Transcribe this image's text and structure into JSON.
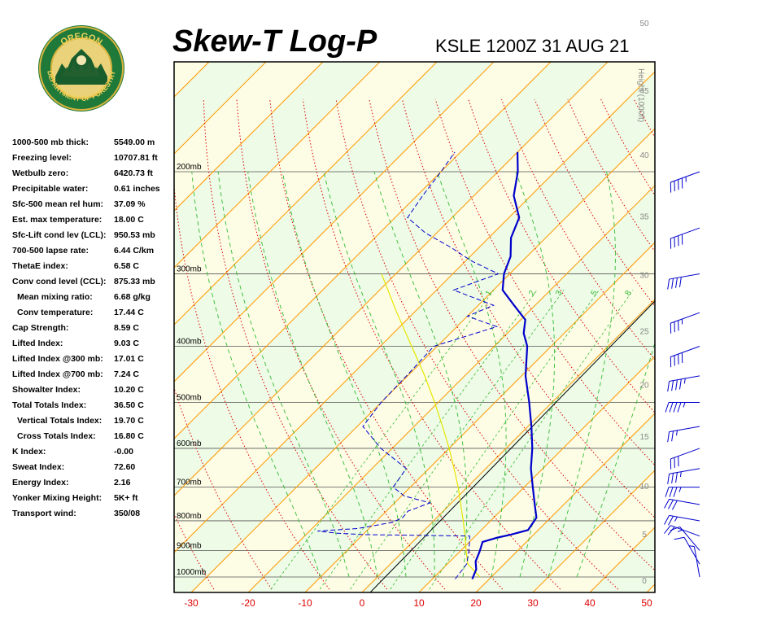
{
  "header": {
    "title": "Skew-T Log-P",
    "station_line": "KSLE 1200Z 31 AUG 21",
    "logo_text_top": "OREGON",
    "logo_text_bottom": "DEPARTMENT OF FORESTRY"
  },
  "indices": [
    {
      "label": "1000-500 mb thick:",
      "value": "5549.00 m",
      "indent": false
    },
    {
      "label": "Freezing level:",
      "value": "10707.81 ft",
      "indent": false
    },
    {
      "label": "Wetbulb zero:",
      "value": "6420.73 ft",
      "indent": false
    },
    {
      "label": "Precipitable water:",
      "value": "0.61 inches",
      "indent": false
    },
    {
      "label": "Sfc-500 mean rel hum:",
      "value": "37.09 %",
      "indent": false
    },
    {
      "label": "Est. max temperature:",
      "value": "18.00 C",
      "indent": false
    },
    {
      "label": "Sfc-Lift cond lev (LCL):",
      "value": "950.53 mb",
      "indent": false
    },
    {
      "label": "700-500 lapse rate:",
      "value": "6.44 C/km",
      "indent": false
    },
    {
      "label": "ThetaE index:",
      "value": "6.58 C",
      "indent": false
    },
    {
      "label": "Conv cond level (CCL):",
      "value": "875.33 mb",
      "indent": false
    },
    {
      "label": "Mean mixing ratio:",
      "value": "6.68 g/kg",
      "indent": true
    },
    {
      "label": "Conv temperature:",
      "value": "17.44 C",
      "indent": true
    },
    {
      "label": "Cap Strength:",
      "value": "8.59 C",
      "indent": false
    },
    {
      "label": "Lifted Index:",
      "value": "9.03 C",
      "indent": false
    },
    {
      "label": "Lifted Index @300 mb:",
      "value": "17.01 C",
      "indent": false
    },
    {
      "label": "Lifted Index @700 mb:",
      "value": "7.24 C",
      "indent": false
    },
    {
      "label": "Showalter Index:",
      "value": "10.20 C",
      "indent": false
    },
    {
      "label": "Total Totals Index:",
      "value": "36.50 C",
      "indent": false
    },
    {
      "label": "Vertical Totals Index:",
      "value": "19.70 C",
      "indent": true
    },
    {
      "label": "Cross Totals Index:",
      "value": "16.80 C",
      "indent": true
    },
    {
      "label": "K Index:",
      "value": "-0.00",
      "indent": false
    },
    {
      "label": "Sweat Index:",
      "value": "72.60",
      "indent": false
    },
    {
      "label": "Energy Index:",
      "value": "2.16",
      "indent": false
    },
    {
      "label": "Yonker Mixing Height:",
      "value": "5K+ ft",
      "indent": false
    },
    {
      "label": "Transport wind:",
      "value": "350/08",
      "indent": false
    }
  ],
  "colors": {
    "temperature": "#0000cc",
    "dewpoint": "#0000cc",
    "parcel": "#e6e600",
    "isotherm": "#ff9900",
    "dry_adiabat": "#dd0000",
    "moist_adiabat": "#33bb33",
    "mixing_ratio": "#33bb33",
    "band_light_green": "#eefbe6",
    "band_light_yellow": "#fdfde6"
  },
  "chart_data": {
    "type": "skew-t",
    "title": "Skew-T Log-P",
    "subtitle": "KSLE 1200Z 31 AUG 21",
    "x_axis_label": "",
    "x_ticks": [
      -30,
      -20,
      -10,
      0,
      10,
      20,
      30,
      40,
      50
    ],
    "pressure_levels_mb": [
      200,
      300,
      400,
      500,
      600,
      700,
      800,
      900,
      1000
    ],
    "pressure_labels": [
      "200mb",
      "300mb",
      "400mb",
      "500mb",
      "600mb",
      "700mb",
      "800mb",
      "900mb",
      "1000mb"
    ],
    "height_axis_label": "Height (1000ft)",
    "height_ticks_kft": [
      0,
      5,
      10,
      15,
      20,
      25,
      30,
      35,
      40,
      45,
      50
    ],
    "mixing_ratio_labels": [
      "1",
      "2",
      "3",
      "5",
      "8"
    ],
    "skew_deg_per_decade_log_p": "approx 45 degrees",
    "temperature_profile": [
      {
        "p": 1008,
        "t": 17.0
      },
      {
        "p": 970,
        "t": 16.0
      },
      {
        "p": 940,
        "t": 14.5
      },
      {
        "p": 905,
        "t": 13.5
      },
      {
        "p": 870,
        "t": 12.3
      },
      {
        "p": 855,
        "t": 14.2
      },
      {
        "p": 845,
        "t": 16.0
      },
      {
        "p": 830,
        "t": 18.2
      },
      {
        "p": 790,
        "t": 17.5
      },
      {
        "p": 750,
        "t": 14.9
      },
      {
        "p": 700,
        "t": 11.5
      },
      {
        "p": 650,
        "t": 7.9
      },
      {
        "p": 600,
        "t": 4.6
      },
      {
        "p": 550,
        "t": 0.6
      },
      {
        "p": 500,
        "t": -4.0
      },
      {
        "p": 450,
        "t": -9.3
      },
      {
        "p": 400,
        "t": -14.2
      },
      {
        "p": 380,
        "t": -17.1
      },
      {
        "p": 360,
        "t": -19.2
      },
      {
        "p": 340,
        "t": -23.7
      },
      {
        "p": 320,
        "t": -28.4
      },
      {
        "p": 300,
        "t": -31.0
      },
      {
        "p": 280,
        "t": -32.9
      },
      {
        "p": 260,
        "t": -36.1
      },
      {
        "p": 240,
        "t": -38.2
      },
      {
        "p": 220,
        "t": -43.0
      },
      {
        "p": 200,
        "t": -46.5
      },
      {
        "p": 185,
        "t": -50.0
      }
    ],
    "dewpoint_profile": [
      {
        "p": 1008,
        "t": 14.0
      },
      {
        "p": 950,
        "t": 13.4
      },
      {
        "p": 900,
        "t": 11.4
      },
      {
        "p": 870,
        "t": 10.0
      },
      {
        "p": 850,
        "t": 9.0
      },
      {
        "p": 845,
        "t": -10.0
      },
      {
        "p": 840,
        "t": -15.0
      },
      {
        "p": 833,
        "t": -18.6
      },
      {
        "p": 825,
        "t": -12.0
      },
      {
        "p": 805,
        "t": -7.0
      },
      {
        "p": 790,
        "t": -6.0
      },
      {
        "p": 770,
        "t": -6.2
      },
      {
        "p": 745,
        "t": -3.8
      },
      {
        "p": 725,
        "t": -9.5
      },
      {
        "p": 700,
        "t": -13.0
      },
      {
        "p": 650,
        "t": -14.0
      },
      {
        "p": 600,
        "t": -22.0
      },
      {
        "p": 550,
        "t": -29.0
      },
      {
        "p": 500,
        "t": -30.0
      },
      {
        "p": 450,
        "t": -30.2
      },
      {
        "p": 400,
        "t": -30.6
      },
      {
        "p": 370,
        "t": -23.0
      },
      {
        "p": 355,
        "t": -30.0
      },
      {
        "p": 340,
        "t": -27.3
      },
      {
        "p": 320,
        "t": -37.0
      },
      {
        "p": 300,
        "t": -32.0
      },
      {
        "p": 285,
        "t": -39.0
      },
      {
        "p": 270,
        "t": -45.0
      },
      {
        "p": 255,
        "t": -52.0
      },
      {
        "p": 240,
        "t": -57.8
      },
      {
        "p": 220,
        "t": -59.0
      },
      {
        "p": 200,
        "t": -60.0
      },
      {
        "p": 185,
        "t": -61.0
      }
    ],
    "parcel_profile": [
      {
        "p": 1000,
        "t": 18.0
      },
      {
        "p": 950,
        "t": 13.6
      },
      {
        "p": 900,
        "t": 10.9
      },
      {
        "p": 850,
        "t": 8.2
      },
      {
        "p": 800,
        "t": 5.2
      },
      {
        "p": 750,
        "t": 1.9
      },
      {
        "p": 700,
        "t": -1.6
      },
      {
        "p": 650,
        "t": -5.6
      },
      {
        "p": 600,
        "t": -10.0
      },
      {
        "p": 550,
        "t": -15.0
      },
      {
        "p": 500,
        "t": -20.6
      },
      {
        "p": 450,
        "t": -27.0
      },
      {
        "p": 400,
        "t": -34.5
      },
      {
        "p": 350,
        "t": -43.0
      },
      {
        "p": 300,
        "t": -52.5
      }
    ],
    "winds": [
      {
        "p": 1000,
        "dir": 350,
        "kt": 5
      },
      {
        "p": 950,
        "dir": 330,
        "kt": 10
      },
      {
        "p": 900,
        "dir": 320,
        "kt": 15
      },
      {
        "p": 850,
        "dir": 290,
        "kt": 20
      },
      {
        "p": 800,
        "dir": 280,
        "kt": 25
      },
      {
        "p": 750,
        "dir": 280,
        "kt": 30
      },
      {
        "p": 700,
        "dir": 270,
        "kt": 35
      },
      {
        "p": 650,
        "dir": 260,
        "kt": 35
      },
      {
        "p": 600,
        "dir": 250,
        "kt": 30
      },
      {
        "p": 550,
        "dir": 260,
        "kt": 25
      },
      {
        "p": 500,
        "dir": 270,
        "kt": 45
      },
      {
        "p": 450,
        "dir": 260,
        "kt": 45
      },
      {
        "p": 400,
        "dir": 250,
        "kt": 40
      },
      {
        "p": 350,
        "dir": 250,
        "kt": 35
      },
      {
        "p": 300,
        "dir": 260,
        "kt": 40
      },
      {
        "p": 250,
        "dir": 250,
        "kt": 40
      },
      {
        "p": 200,
        "dir": 250,
        "kt": 45
      }
    ]
  }
}
